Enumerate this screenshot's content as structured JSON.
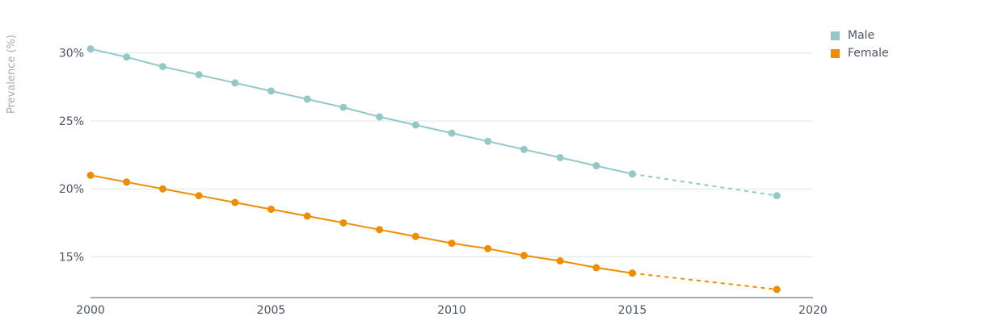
{
  "chart_data": {
    "type": "line",
    "title": "",
    "xlabel": "",
    "ylabel": "Prevalence (%)",
    "x_ticks": [
      "2000",
      "2005",
      "2010",
      "2015",
      "2020"
    ],
    "y_ticks": [
      "15%",
      "20%",
      "25%",
      "30%"
    ],
    "xlim": [
      2000,
      2020
    ],
    "ylim": [
      12,
      32
    ],
    "grid": "horizontal",
    "legend_position": "top-right",
    "series": [
      {
        "name": "Male",
        "color": "#92c9c8",
        "x": [
          2000,
          2001,
          2002,
          2003,
          2004,
          2005,
          2006,
          2007,
          2008,
          2009,
          2010,
          2011,
          2012,
          2013,
          2014,
          2015,
          2019
        ],
        "values": [
          30.3,
          29.7,
          29.0,
          28.4,
          27.8,
          27.2,
          26.6,
          26.0,
          25.3,
          24.7,
          24.1,
          23.5,
          22.9,
          22.3,
          21.7,
          21.1,
          19.5
        ],
        "projected_from_index": 15
      },
      {
        "name": "Female",
        "color": "#f08c00",
        "x": [
          2000,
          2001,
          2002,
          2003,
          2004,
          2005,
          2006,
          2007,
          2008,
          2009,
          2010,
          2011,
          2012,
          2013,
          2014,
          2015,
          2019
        ],
        "values": [
          21.0,
          20.5,
          20.0,
          19.5,
          19.0,
          18.5,
          18.0,
          17.5,
          17.0,
          16.5,
          16.0,
          15.6,
          15.1,
          14.7,
          14.2,
          13.8,
          12.6
        ],
        "projected_from_index": 15
      }
    ]
  },
  "style": {
    "grid_color": "#d7ebeb",
    "axis_color": "#4b5563"
  }
}
